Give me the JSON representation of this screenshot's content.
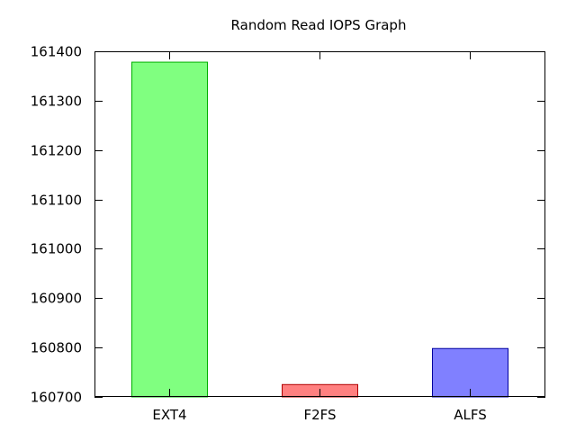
{
  "chart_data": {
    "type": "bar",
    "title": "Random Read IOPS Graph",
    "xlabel": "",
    "ylabel": "",
    "categories": [
      "EXT4",
      "F2FS",
      "ALFS"
    ],
    "values": [
      161378,
      160725,
      160798
    ],
    "colors": [
      "#80ff80",
      "#ff8080",
      "#8080ff"
    ],
    "edge_colors": [
      "#00b000",
      "#b00000",
      "#0000a0"
    ],
    "ylim": [
      160700,
      161400
    ],
    "yticks": [
      160700,
      160800,
      160900,
      161000,
      161100,
      161200,
      161300,
      161400
    ],
    "grid": false,
    "legend": "none"
  }
}
